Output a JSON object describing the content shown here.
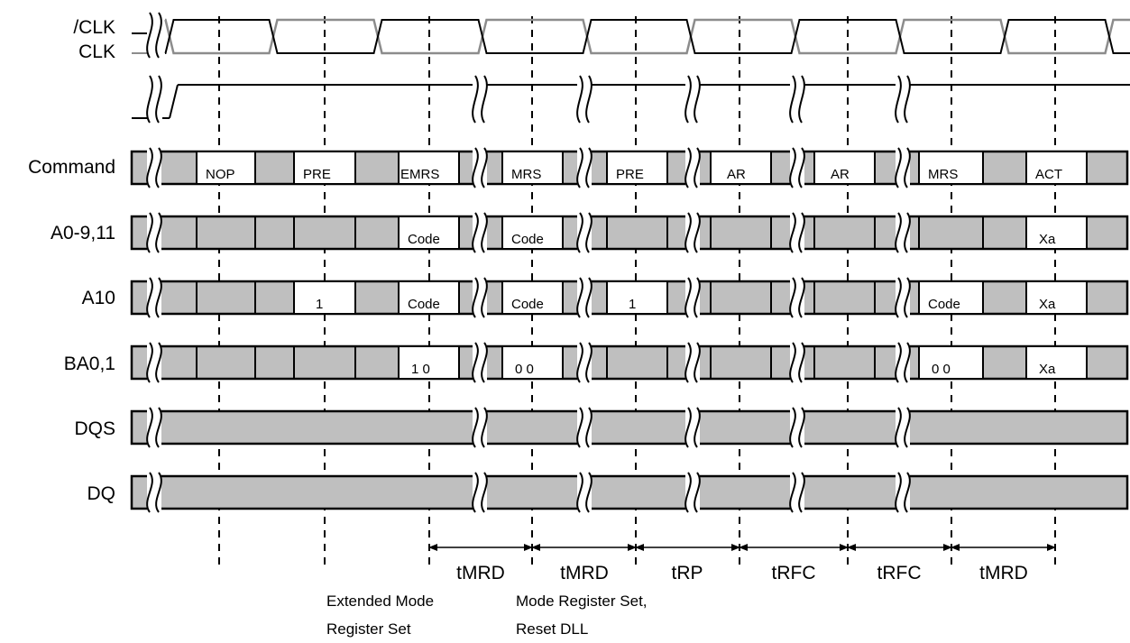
{
  "signals": {
    "clk_bar": "/CLK",
    "clk": "CLK",
    "cke": "",
    "command": "Command",
    "a0_9_11": "A0-9,11",
    "a10": "A10",
    "ba": "BA0,1",
    "dqs": "DQS",
    "dq": "DQ"
  },
  "command_cells": [
    "NOP",
    "PRE",
    "EMRS",
    "MRS",
    "PRE",
    "AR",
    "AR",
    "MRS",
    "ACT"
  ],
  "a0_9_11_cells": [
    "Code",
    "Code",
    "Xa"
  ],
  "a10_cells": [
    "1",
    "Code",
    "Code",
    "1",
    "Code",
    "Xa"
  ],
  "ba_cells": [
    "1 0",
    "0 0",
    "0 0",
    "Xa"
  ],
  "timings": [
    "tMRD",
    "tMRD",
    "tRP",
    "tRFC",
    "tRFC",
    "tMRD"
  ],
  "notes": {
    "emrs_line1": "Extended Mode",
    "emrs_line2": "Register Set",
    "mrs_line1": "Mode Register Set,",
    "mrs_line2": "Reset DLL"
  },
  "colors": {
    "fill": "#bfbfbf",
    "clk_bar_line": "#000000",
    "clk_line": "#8c8c8c"
  }
}
